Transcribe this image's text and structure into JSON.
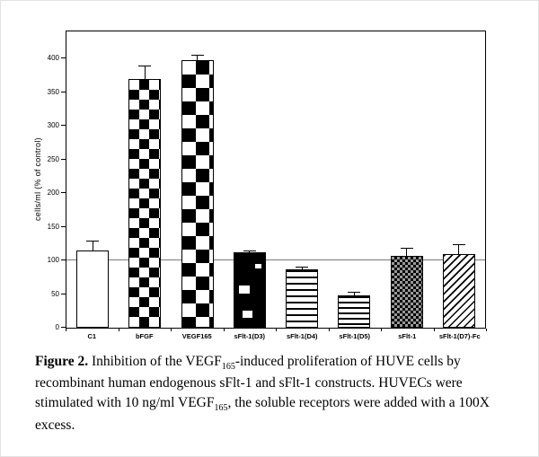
{
  "chart_data": {
    "type": "bar",
    "title": "",
    "xlabel": "",
    "ylabel": "cells/ml (% of control)",
    "ylim": [
      0,
      440
    ],
    "yticks": [
      0,
      50,
      100,
      150,
      200,
      250,
      300,
      350,
      400
    ],
    "reference_line": 100,
    "grid": false,
    "legend_position": "none",
    "categories": [
      "C1",
      "bFGF",
      "VEGF165",
      "sFlt-1(D3)",
      "sFlt-1(D4)",
      "sFlt-1(D5)",
      "sFlt-1",
      "sFlt-1(D7)-Fc"
    ],
    "values": [
      115,
      370,
      397,
      112,
      87,
      48,
      107,
      110
    ],
    "errors": [
      15,
      20,
      8,
      3,
      4,
      6,
      12,
      14
    ],
    "patterns": [
      "plain",
      "checker",
      "checker-large",
      "black-dash",
      "hlines",
      "hlines-fine",
      "checker-small",
      "diagonal"
    ]
  },
  "caption": {
    "segments": [
      {
        "text": "Figure 2.",
        "bold": true
      },
      {
        "text": " Inhibition of the VEGF"
      },
      {
        "text": "165",
        "sub": true
      },
      {
        "text": "-induced proliferation of HUVE cells by recombinant human endogenous sFlt-1 and sFlt-1 constructs. HUVECs were stimulated with 10 ng/ml VEGF"
      },
      {
        "text": "165",
        "sub": true
      },
      {
        "text": ", the soluble receptors were added with a 100X excess."
      }
    ]
  }
}
